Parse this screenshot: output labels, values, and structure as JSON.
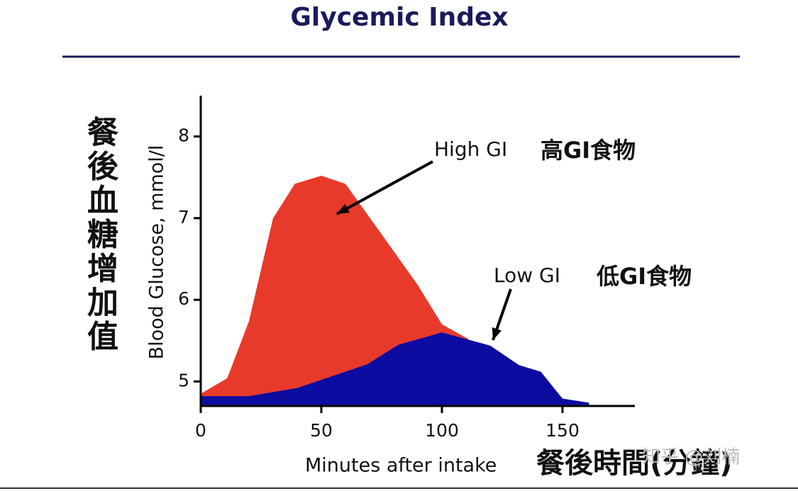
{
  "chart_data": {
    "type": "area",
    "title": "Glycemic Index",
    "ylabel": "Blood Glucose, mmol/l",
    "ylabel_cn": "餐後血糖增加值",
    "xlabel": "Minutes after intake",
    "xlabel_cn": "餐後時間(分鐘)",
    "watermark": "知乎 @刘楠",
    "xlim": [
      0,
      180
    ],
    "xticks": [
      0,
      50,
      100,
      150
    ],
    "ylim": [
      4.7,
      8.5
    ],
    "yticks": [
      5,
      6,
      7,
      8
    ],
    "series": [
      {
        "name": "High GI",
        "name_cn": "高GI食物",
        "color": "#e83a2b",
        "x": [
          0,
          11,
          20,
          30,
          39,
          50,
          60,
          76,
          90,
          100,
          111
        ],
        "values": [
          4.85,
          5.04,
          5.74,
          7.0,
          7.42,
          7.52,
          7.42,
          6.76,
          6.18,
          5.7,
          5.52
        ]
      },
      {
        "name": "Low GI",
        "name_cn": "低GI食物",
        "color": "#0c0ca0",
        "x": [
          0,
          20,
          40,
          69,
          82,
          100,
          120,
          132,
          141,
          150,
          161
        ],
        "values": [
          4.82,
          4.82,
          4.92,
          5.21,
          5.45,
          5.6,
          5.44,
          5.2,
          5.12,
          4.79,
          4.74
        ]
      }
    ]
  }
}
